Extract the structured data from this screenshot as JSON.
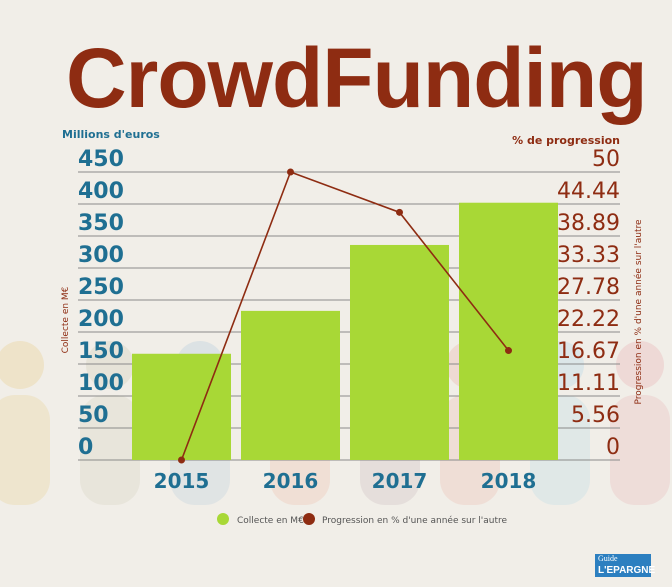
{
  "title": "CrowdFunding",
  "logo_text": "Guide Indépendant de L'ÉPARGNE",
  "chart_data": {
    "type": "bar+line",
    "categories": [
      "2015",
      "2016",
      "2017",
      "2018"
    ],
    "series": [
      {
        "name": "Collecte en M€",
        "type": "bar",
        "axis": "left",
        "color": "#a8d836",
        "values": [
          166,
          233,
          336,
          402
        ]
      },
      {
        "name": "Progression en % d'une année sur l'autre",
        "type": "line",
        "axis": "right",
        "color": "#8e2c12",
        "values": [
          0,
          50,
          43,
          19
        ]
      }
    ],
    "left_axis": {
      "title": "Millions d'euros",
      "label": "Collecte en M€",
      "ticks": [
        "0",
        "50",
        "100",
        "150",
        "200",
        "250",
        "300",
        "350",
        "400",
        "450"
      ],
      "ylim": [
        0,
        450
      ],
      "color": "#1f6f92"
    },
    "right_axis": {
      "title": "% de progression",
      "label": "Progression en % d'une année sur l'autre",
      "ticks": [
        "0",
        "5.56",
        "11.11",
        "16.67",
        "22.22",
        "27.78",
        "33.33",
        "38.89",
        "44.44",
        "50"
      ],
      "ylim": [
        0,
        50
      ],
      "color": "#8e2c12"
    },
    "grid": true,
    "legend": "bottom"
  }
}
